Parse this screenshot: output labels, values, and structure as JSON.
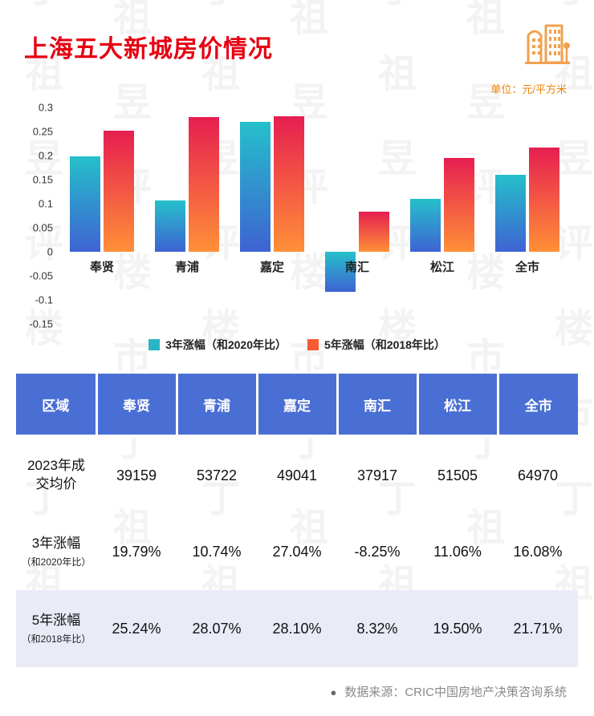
{
  "page": {
    "title": "上海五大新城房价情况",
    "unit_label": "单位：元/平方米",
    "footer_bullet": "●",
    "footer_text": "数据来源：CRIC中国房地产决策咨询系统",
    "watermark_text": "丁祖昱评楼市"
  },
  "colors": {
    "title_red": "#e60012",
    "unit_orange": "#f08300",
    "header_blue": "#4a6fd4",
    "row_lavender": "#e9ebf7",
    "highlight_red": "#e60012",
    "footer_gray": "#8a8a8a",
    "icon_orange": "#f0a24e"
  },
  "chart_data": {
    "type": "bar",
    "title": "上海五大新城房价情况",
    "categories": [
      "奉贤",
      "青浦",
      "嘉定",
      "南汇",
      "松江",
      "全市"
    ],
    "series": [
      {
        "name": "3年涨幅（和2020年比）",
        "values": [
          0.1979,
          0.1074,
          0.2704,
          -0.0825,
          0.1106,
          0.1608
        ],
        "gradient_top": "#25c0ca",
        "gradient_bottom": "#3e63d2",
        "legend_color": "#2ab4c4"
      },
      {
        "name": "5年涨幅（和2018年比）",
        "values": [
          0.2524,
          0.2807,
          0.281,
          0.0832,
          0.195,
          0.2171
        ],
        "gradient_top": "#e61e50",
        "gradient_bottom": "#ff9038",
        "legend_color": "#f75b32"
      }
    ],
    "ylim": [
      -0.15,
      0.3
    ],
    "yticks": [
      0.3,
      0.25,
      0.2,
      0.15,
      0.1,
      0.05,
      0,
      -0.05,
      -0.1,
      -0.15
    ],
    "grid": false,
    "legend_position": "bottom"
  },
  "table": {
    "header": [
      "区域",
      "奉贤",
      "青浦",
      "嘉定",
      "南汇",
      "松江",
      "全市"
    ],
    "rows": [
      {
        "label": "2023年成交均价",
        "sublabel": "",
        "values": [
          "39159",
          "53722",
          "49041",
          "37917",
          "51505",
          "64970"
        ],
        "highlight": []
      },
      {
        "label": "3年涨幅",
        "sublabel": "（和2020年比）",
        "values": [
          "19.79%",
          "10.74%",
          "27.04%",
          "-8.25%",
          "11.06%",
          "16.08%"
        ],
        "highlight": [
          2
        ]
      },
      {
        "label": "5年涨幅",
        "sublabel": "（和2018年比）",
        "values": [
          "25.24%",
          "28.07%",
          "28.10%",
          "8.32%",
          "19.50%",
          "21.71%"
        ],
        "highlight": [
          2
        ]
      }
    ]
  }
}
